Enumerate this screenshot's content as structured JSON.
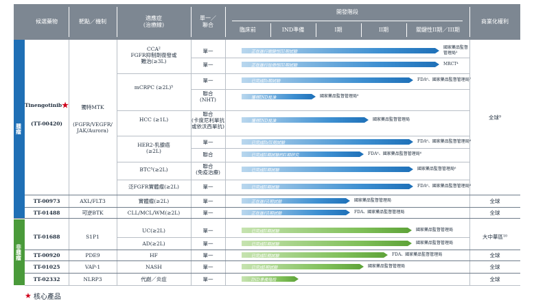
{
  "header": {
    "candidate": "候選藥物",
    "target": "靶點／機制",
    "indication": "適應症\n(治療線)",
    "mono": "單一／\n聯合",
    "stage": "開發階段",
    "preclinical": "臨床前",
    "ind": "IND準備",
    "phase1": "I期",
    "phase2": "II期",
    "pivotal": "關鍵性II期／III期",
    "rights": "商業化權利"
  },
  "groups": {
    "onc": "腫瘤",
    "nononc": "非腫瘤"
  },
  "tt00420": {
    "name": "Tinengotinib",
    "code": "(TT-00420)",
    "target1": "獨特MTK",
    "target2": "(FGFR/VEGFR/\nJAK/Aurora)",
    "rights": "全球⁹"
  },
  "rows": [
    {
      "ind": "CCA²\nFGFR抑制劑復發或\n難治(≥3L)",
      "mono": "單一",
      "bar": "正在進行關鍵性III期試驗",
      "note": "國家藥品監督\n管理局³"
    },
    {
      "mono": "單一",
      "bar": "正在進行註冊性III期試驗",
      "note": "MRCT⁴"
    },
    {
      "ind": "mCRPC (≥2L)⁵",
      "mono": "單一",
      "bar": "已完成Ib期試驗",
      "note": "FDA⁶、國家藥品監督管理局⁷"
    },
    {
      "mono": "聯合\n(NHT)",
      "bar": "獲得IND批准",
      "note": "國家藥品監督管理局⁸"
    },
    {
      "ind": "HCC (≥1L)",
      "mono": "聯合\n(卡度尼利單抗\n或依沃西單抗)",
      "bar": "獲得IND批准",
      "note": "國家藥品監督管理局"
    },
    {
      "ind": "HER2-乳腺癌\n(≥2L)",
      "mono": "單一",
      "bar": "已完成Ib/II期試驗",
      "note": "FDA⁶、國家藥品監督管理局⁶"
    },
    {
      "mono": "聯合",
      "bar": "已完成II期試驗的II期研究",
      "note": "FDA⁶、國家藥品監督管理局⁶"
    },
    {
      "ind": "BTC⁵(≥2L)",
      "mono": "聯合\n(免疫治療)",
      "bar": "已完成II期試驗",
      "note": "國家藥品監督管理局⁶"
    },
    {
      "ind": "泛FGFR實體瘤(≥2L)",
      "mono": "單一",
      "bar": "已完成II期試驗",
      "note": "FDA⁶、國家藥品監督管理局⁶"
    }
  ],
  "others": [
    {
      "code": "TT-00973",
      "target": "AXL/FLT3",
      "ind": "實體瘤(≥2L)",
      "mono": "單一",
      "bar": "正在進行I期試驗",
      "note": "國家藥品監督管理局",
      "rights": "全球"
    },
    {
      "code": "TT-01488",
      "target": "可逆BTK",
      "ind": "CLL/MCL/WM(≥2L)",
      "mono": "單一",
      "bar": "正在進行I期試驗",
      "note": "FDA、國家藥品監督管理局",
      "rights": "全球"
    },
    {
      "code": "TT-01688",
      "target": "S1P1",
      "ind": "UC(≥2L)",
      "mono": "單一",
      "bar": "已完成II期試驗",
      "note": "國家藥品監督管理局",
      "rights": "大中華區¹⁰"
    },
    {
      "ind": "AD(≥2L)",
      "mono": "單一",
      "bar": "已完成II期試驗",
      "note": "國家藥品監督管理局"
    },
    {
      "code": "TT-00920",
      "target": "PDE9",
      "ind": "HF",
      "mono": "單一",
      "bar": "已完成II期試驗",
      "note": "FDA、國家藥品監督管理局",
      "rights": "全球"
    },
    {
      "code": "TT-01025",
      "target": "VAP-1",
      "ind": "NASH",
      "mono": "單一",
      "bar": "已完成I期試驗",
      "note": "國家藥品監督管理局",
      "rights": "全球"
    },
    {
      "code": "TT-02332",
      "target": "NLRP3",
      "ind": "代謝／炎症",
      "mono": "單一",
      "bar": "IND準備階段",
      "rights": "全球"
    }
  ],
  "footer": {
    "star": "★",
    "label": "核心產品"
  },
  "colors": {
    "header": "#7d8792",
    "oncology": "#1f6fb5",
    "nononcology": "#4a9a3a"
  }
}
